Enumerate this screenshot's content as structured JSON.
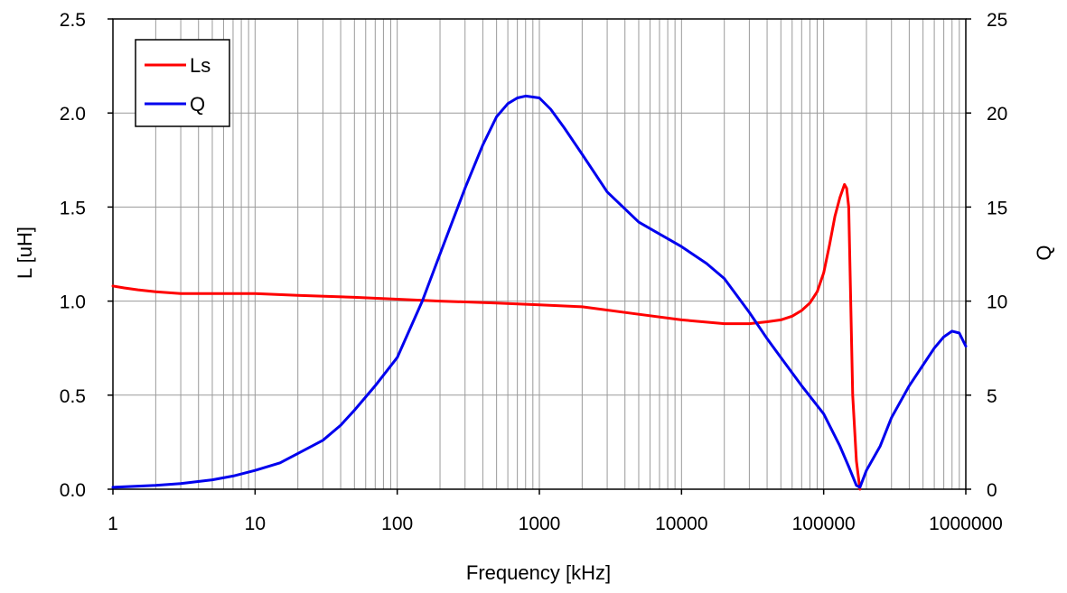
{
  "chart_data": {
    "type": "line",
    "title": "",
    "xlabel": "Frequency [kHz]",
    "ylabel_left": "L [uH]",
    "ylabel_right": "Q",
    "x_scale": "log",
    "xlim": [
      1,
      1000000
    ],
    "ylim_left": [
      0,
      2.5
    ],
    "ylim_right": [
      0,
      25
    ],
    "grid": true,
    "legend_position": "top-left",
    "x_ticks": [
      "1",
      "10",
      "100",
      "1000",
      "10000",
      "100000",
      "1000000"
    ],
    "y_ticks_left": [
      "0.0",
      "0.5",
      "1.0",
      "1.5",
      "2.0",
      "2.5"
    ],
    "y_ticks_right": [
      "0",
      "5",
      "10",
      "15",
      "20",
      "25"
    ],
    "series": [
      {
        "name": "Ls",
        "axis": "left",
        "color": "#ff0000",
        "x": [
          1,
          1.2,
          1.5,
          2,
          3,
          5,
          10,
          20,
          50,
          100,
          200,
          500,
          1000,
          2000,
          5000,
          10000,
          20000,
          30000,
          40000,
          50000,
          60000,
          70000,
          80000,
          90000,
          100000,
          110000,
          120000,
          130000,
          140000,
          145000,
          150000,
          155000,
          160000,
          170000,
          180000
        ],
        "y": [
          1.08,
          1.07,
          1.06,
          1.05,
          1.04,
          1.04,
          1.04,
          1.03,
          1.02,
          1.01,
          1.0,
          0.99,
          0.98,
          0.97,
          0.93,
          0.9,
          0.88,
          0.88,
          0.89,
          0.9,
          0.92,
          0.95,
          0.99,
          1.05,
          1.15,
          1.3,
          1.45,
          1.55,
          1.62,
          1.6,
          1.5,
          1.0,
          0.5,
          0.15,
          0.0
        ]
      },
      {
        "name": "Q",
        "axis": "right",
        "color": "#0000ee",
        "x": [
          1,
          2,
          3,
          5,
          7,
          10,
          15,
          20,
          30,
          40,
          50,
          70,
          100,
          150,
          200,
          300,
          400,
          500,
          600,
          700,
          800,
          1000,
          1200,
          1500,
          2000,
          3000,
          5000,
          10000,
          15000,
          20000,
          30000,
          40000,
          50000,
          70000,
          100000,
          130000,
          150000,
          170000,
          180000,
          200000,
          250000,
          300000,
          400000,
          500000,
          600000,
          700000,
          800000,
          900000,
          1000000
        ],
        "y": [
          0.1,
          0.2,
          0.3,
          0.5,
          0.7,
          1.0,
          1.4,
          1.9,
          2.6,
          3.4,
          4.2,
          5.5,
          7.0,
          10.0,
          12.5,
          16.0,
          18.3,
          19.8,
          20.5,
          20.8,
          20.9,
          20.8,
          20.2,
          19.2,
          17.8,
          15.8,
          14.2,
          12.9,
          12.0,
          11.2,
          9.4,
          8.0,
          7.0,
          5.5,
          4.0,
          2.3,
          1.2,
          0.2,
          0.1,
          1.0,
          2.3,
          3.8,
          5.5,
          6.6,
          7.5,
          8.1,
          8.4,
          8.3,
          7.6
        ]
      }
    ]
  }
}
